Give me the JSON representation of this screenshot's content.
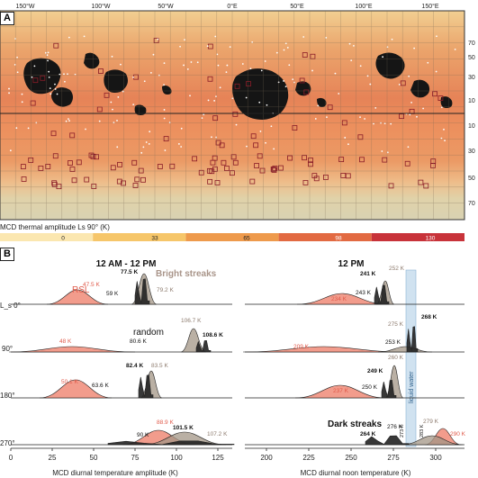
{
  "panel_a": {
    "letter": "A",
    "lon_labels": [
      "150°W",
      "100°W",
      "50°W",
      "0°E",
      "50°E",
      "100°E",
      "150°E"
    ],
    "lat_labels": [
      "70",
      "50",
      "30",
      "10",
      "10",
      "30",
      "50",
      "70"
    ],
    "colorbar": {
      "title": "MCD thermal amplitude Ls 90° (K)",
      "ticks": [
        "0",
        "33",
        "65",
        "98",
        "130"
      ],
      "colors": [
        "#fbe7b0",
        "#f6c66a",
        "#ee9a4c",
        "#e26a42",
        "#c8333a"
      ]
    }
  },
  "panel_b": {
    "letter": "B",
    "left_title": "12 AM - 12 PM",
    "right_title": "12 PM",
    "row_labels": [
      "L_s 0°",
      "90°",
      "180°",
      "270°"
    ],
    "left_annotations": {
      "rsl": "RSL",
      "bright_streaks": "Bright streaks",
      "random": "random",
      "row0": [
        "47.5 K",
        "59 K",
        "77.5 K",
        "79.2 K"
      ],
      "row1": [
        "48 K",
        "80.6 K",
        "106.7 K",
        "108.6 K"
      ],
      "row2": [
        "50.1 K",
        "63.6 K",
        "82.4 K",
        "83.5 K"
      ],
      "row3": [
        "88.9 K",
        "90 K",
        "101.5 K",
        "107.2 K"
      ]
    },
    "right_annotations": {
      "liquid_water": "liquid water",
      "dark_streaks": "Dark streaks",
      "row0": [
        "234 K",
        "243 K",
        "241 K",
        "252 K"
      ],
      "row1": [
        "209 K",
        "253 K",
        "275 K",
        "268 K"
      ],
      "row2": [
        "237 K",
        "250 K",
        "249 K",
        "260 K"
      ],
      "row3": [
        "264 K",
        "276 K",
        "273 K",
        "283 K",
        "279 K",
        "290 K"
      ]
    },
    "left_axis": {
      "xlabel": "MCD diurnal temperature amplitude (K)",
      "ticks": [
        "0",
        "25",
        "50",
        "75",
        "100",
        "125"
      ]
    },
    "right_axis": {
      "xlabel": "MCD diurnal noon temperature (K)",
      "ticks": [
        "200",
        "225",
        "250",
        "275",
        "300"
      ]
    }
  }
}
